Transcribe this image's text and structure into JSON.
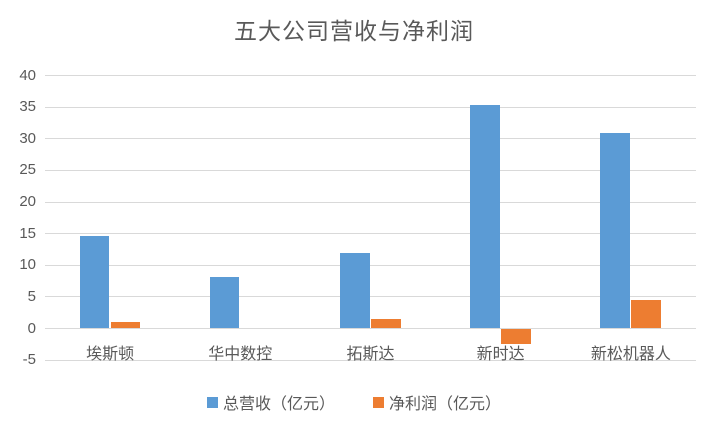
{
  "title": "五大公司营收与净利润",
  "colors": {
    "revenue": "#5b9bd5",
    "profit": "#ed7d31",
    "gridline": "#d9d9d9",
    "text": "#595959",
    "background": "#ffffff"
  },
  "chart_data": {
    "type": "bar",
    "title": "五大公司营收与净利润",
    "categories": [
      "埃斯顿",
      "华中数控",
      "拓斯达",
      "新时达",
      "新松机器人"
    ],
    "series": [
      {
        "name": "总营收（亿元）",
        "color": "#5b9bd5",
        "values": [
          14.6,
          8.2,
          12.0,
          35.3,
          31.0
        ]
      },
      {
        "name": "净利润（亿元）",
        "color": "#ed7d31",
        "values": [
          1.0,
          0,
          1.5,
          -2.4,
          4.5
        ]
      }
    ],
    "xlabel": "",
    "ylabel": "",
    "ylim": [
      -5,
      40
    ],
    "yticks": [
      40,
      35,
      30,
      25,
      20,
      15,
      10,
      5,
      0,
      -5
    ],
    "grid": true,
    "legend_position": "bottom"
  },
  "legend": {
    "items": [
      {
        "label": "总营收（亿元）",
        "color": "#5b9bd5"
      },
      {
        "label": "净利润（亿元）",
        "color": "#ed7d31"
      }
    ]
  }
}
